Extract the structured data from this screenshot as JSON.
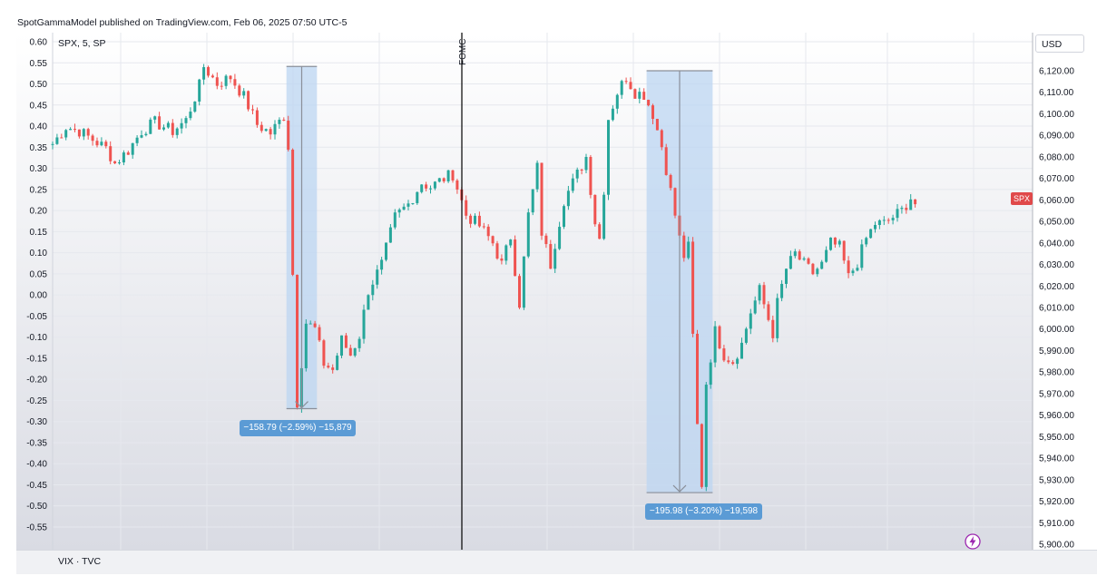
{
  "publisher_line": "SpotGammaModel published on TradingView.com, Feb 06, 2025 07:50 UTC-5",
  "symbol_info": "SPX, 5, SP",
  "currency_button": "USD",
  "price_tag": "SPX",
  "bottom_pane_label": "VIX · TVC",
  "event_label": "FOMC",
  "measure_1": "−158.79 (−2.59%) −15,879",
  "measure_2": "−195.98 (−3.20%) −19,598",
  "colors": {
    "up": "#26a69a",
    "down": "#ef5350",
    "measure_fill": "#bcd6f2",
    "label_bg": "#5b9bd5",
    "price_tag_bg": "#e0494a"
  },
  "icons": [
    "bolt-icon",
    "arrow-down-icon"
  ],
  "chart_data": {
    "type": "candlestick",
    "symbol": "SPX",
    "interval": "5",
    "left_axis": {
      "ticks": [
        "0.60",
        "0.55",
        "0.50",
        "0.45",
        "0.40",
        "0.35",
        "0.30",
        "0.25",
        "0.20",
        "0.15",
        "0.10",
        "0.05",
        "0.00",
        "-0.05",
        "-0.10",
        "-0.15",
        "-0.20",
        "-0.25",
        "-0.30",
        "-0.35",
        "-0.40",
        "-0.45",
        "-0.50",
        "-0.55"
      ],
      "range": [
        -0.58,
        0.6
      ]
    },
    "right_axis": {
      "ticks": [
        "6,120.00",
        "6,110.00",
        "6,100.00",
        "6,090.00",
        "6,080.00",
        "6,070.00",
        "6,060.00",
        "6,050.00",
        "6,040.00",
        "6,030.00",
        "6,020.00",
        "6,010.00",
        "6,000.00",
        "5,990.00",
        "5,980.00",
        "5,970.00",
        "5,960.00",
        "5,950.00",
        "5,940.00",
        "5,930.00",
        "5,920.00",
        "5,910.00",
        "5,900.00"
      ],
      "range": [
        5898,
        6131
      ]
    },
    "price_path": [
      [
        0,
        6086
      ],
      [
        3,
        6094
      ],
      [
        6,
        6092
      ],
      [
        9,
        6088
      ],
      [
        12,
        6084
      ],
      [
        14,
        6077
      ],
      [
        17,
        6083
      ],
      [
        20,
        6092
      ],
      [
        23,
        6096
      ],
      [
        27,
        6092
      ],
      [
        30,
        6097
      ],
      [
        33,
        6113
      ],
      [
        34,
        6122
      ],
      [
        37,
        6114
      ],
      [
        40,
        6117
      ],
      [
        43,
        6108
      ],
      [
        46,
        6095
      ],
      [
        49,
        6091
      ],
      [
        52,
        6099
      ],
      [
        53,
        6085
      ],
      [
        55,
        5966
      ],
      [
        57,
        6003
      ],
      [
        59,
        6000
      ],
      [
        61,
        5984
      ],
      [
        63,
        5981
      ],
      [
        65,
        5995
      ],
      [
        67,
        5988
      ],
      [
        69,
        5997
      ],
      [
        71,
        6018
      ],
      [
        74,
        6030
      ],
      [
        77,
        6052
      ],
      [
        80,
        6058
      ],
      [
        83,
        6068
      ],
      [
        85,
        6066
      ],
      [
        88,
        6070
      ],
      [
        90,
        6072
      ],
      [
        93,
        6053
      ],
      [
        96,
        6048
      ],
      [
        99,
        6040
      ],
      [
        101,
        6030
      ],
      [
        103,
        6043
      ],
      [
        105,
        6012
      ],
      [
        107,
        6053
      ],
      [
        109,
        6075
      ],
      [
        110,
        6045
      ],
      [
        112,
        6030
      ],
      [
        115,
        6060
      ],
      [
        118,
        6072
      ],
      [
        120,
        6080
      ],
      [
        122,
        6050
      ],
      [
        123,
        6042
      ],
      [
        124,
        6065
      ],
      [
        125,
        6098
      ],
      [
        127,
        6110
      ],
      [
        129,
        6117
      ],
      [
        131,
        6110
      ],
      [
        133,
        6109
      ],
      [
        135,
        6100
      ],
      [
        137,
        6085
      ],
      [
        139,
        6064
      ],
      [
        141,
        6042
      ],
      [
        142,
        6034
      ],
      [
        143,
        6038
      ],
      [
        145,
        5955
      ],
      [
        146,
        5928
      ],
      [
        147,
        5975
      ],
      [
        149,
        5999
      ],
      [
        151,
        5988
      ],
      [
        153,
        5985
      ],
      [
        155,
        5993
      ],
      [
        157,
        6008
      ],
      [
        159,
        6018
      ],
      [
        162,
        5998
      ],
      [
        163,
        6012
      ],
      [
        165,
        6028
      ],
      [
        167,
        6035
      ],
      [
        169,
        6030
      ],
      [
        171,
        6026
      ],
      [
        173,
        6030
      ],
      [
        175,
        6040
      ],
      [
        177,
        6038
      ],
      [
        179,
        6024
      ],
      [
        181,
        6031
      ],
      [
        183,
        6042
      ],
      [
        185,
        6049
      ],
      [
        187,
        6049
      ],
      [
        189,
        6052
      ],
      [
        191,
        6055
      ],
      [
        193,
        6061
      ],
      [
        194,
        6058
      ]
    ],
    "event": {
      "name": "FOMC",
      "bar": 93
    },
    "measurements": [
      {
        "bar_start": 53,
        "bar_end": 57,
        "price_high": 6122,
        "price_low": 5963,
        "change": -158.79,
        "change_pct": -2.59,
        "ticks": -15879
      },
      {
        "bar_start": 134,
        "bar_end": 146,
        "price_high": 6120,
        "price_low": 5924,
        "change": -195.98,
        "change_pct": -3.2,
        "ticks": -19598
      }
    ],
    "last_price": 6060,
    "grid": true
  }
}
